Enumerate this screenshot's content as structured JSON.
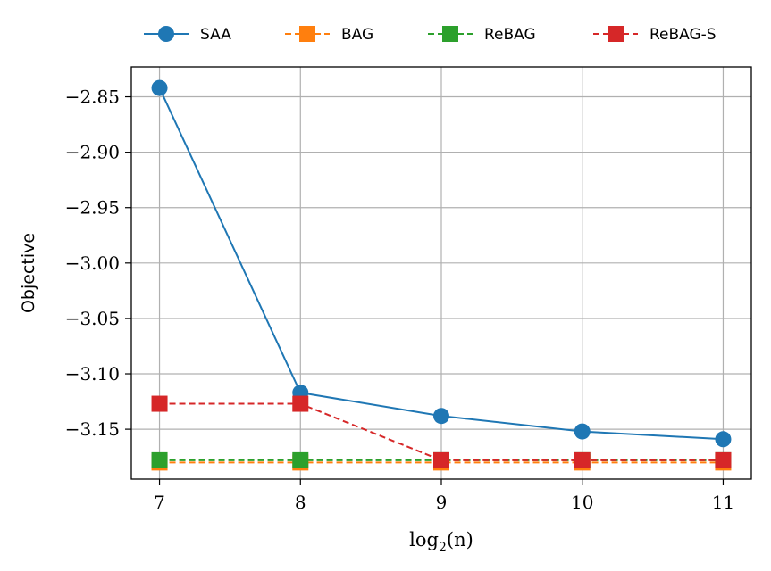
{
  "chart_data": {
    "type": "line",
    "xlabel": "log2(n)",
    "xlabel_base": "log",
    "xlabel_sub": "2",
    "xlabel_arg": "(n)",
    "ylabel": "Objective",
    "x": [
      7,
      8,
      9,
      10,
      11
    ],
    "x_tick_labels": [
      "7",
      "8",
      "9",
      "10",
      "11"
    ],
    "y_ticks": [
      -2.85,
      -2.9,
      -2.95,
      -3.0,
      -3.05,
      -3.1,
      -3.15
    ],
    "y_tick_labels": [
      "−2.85",
      "−2.90",
      "−2.95",
      "−3.00",
      "−3.05",
      "−3.10",
      "−3.15"
    ],
    "xlim": [
      6.8,
      11.2
    ],
    "ylim": [
      -3.195,
      -2.823
    ],
    "grid": true,
    "legend_position": "top, outside plot",
    "series": [
      {
        "name": "SAA",
        "values": [
          -2.842,
          -3.117,
          -3.138,
          -3.152,
          -3.159
        ],
        "color": "#1f77b4",
        "marker": "circle",
        "dash": "solid"
      },
      {
        "name": "BAG",
        "values": [
          -3.18,
          -3.18,
          -3.18,
          -3.18,
          -3.18
        ],
        "color": "#ff7f0e",
        "marker": "square",
        "dash": "dashed"
      },
      {
        "name": "ReBAG",
        "values": [
          -3.178,
          -3.178,
          -3.178,
          -3.178,
          -3.178
        ],
        "color": "#2ca02c",
        "marker": "square",
        "dash": "dashed"
      },
      {
        "name": "ReBAG-S",
        "values": [
          -3.127,
          -3.127,
          -3.178,
          -3.178,
          -3.178
        ],
        "color": "#d62728",
        "marker": "square",
        "dash": "dashed"
      }
    ]
  }
}
